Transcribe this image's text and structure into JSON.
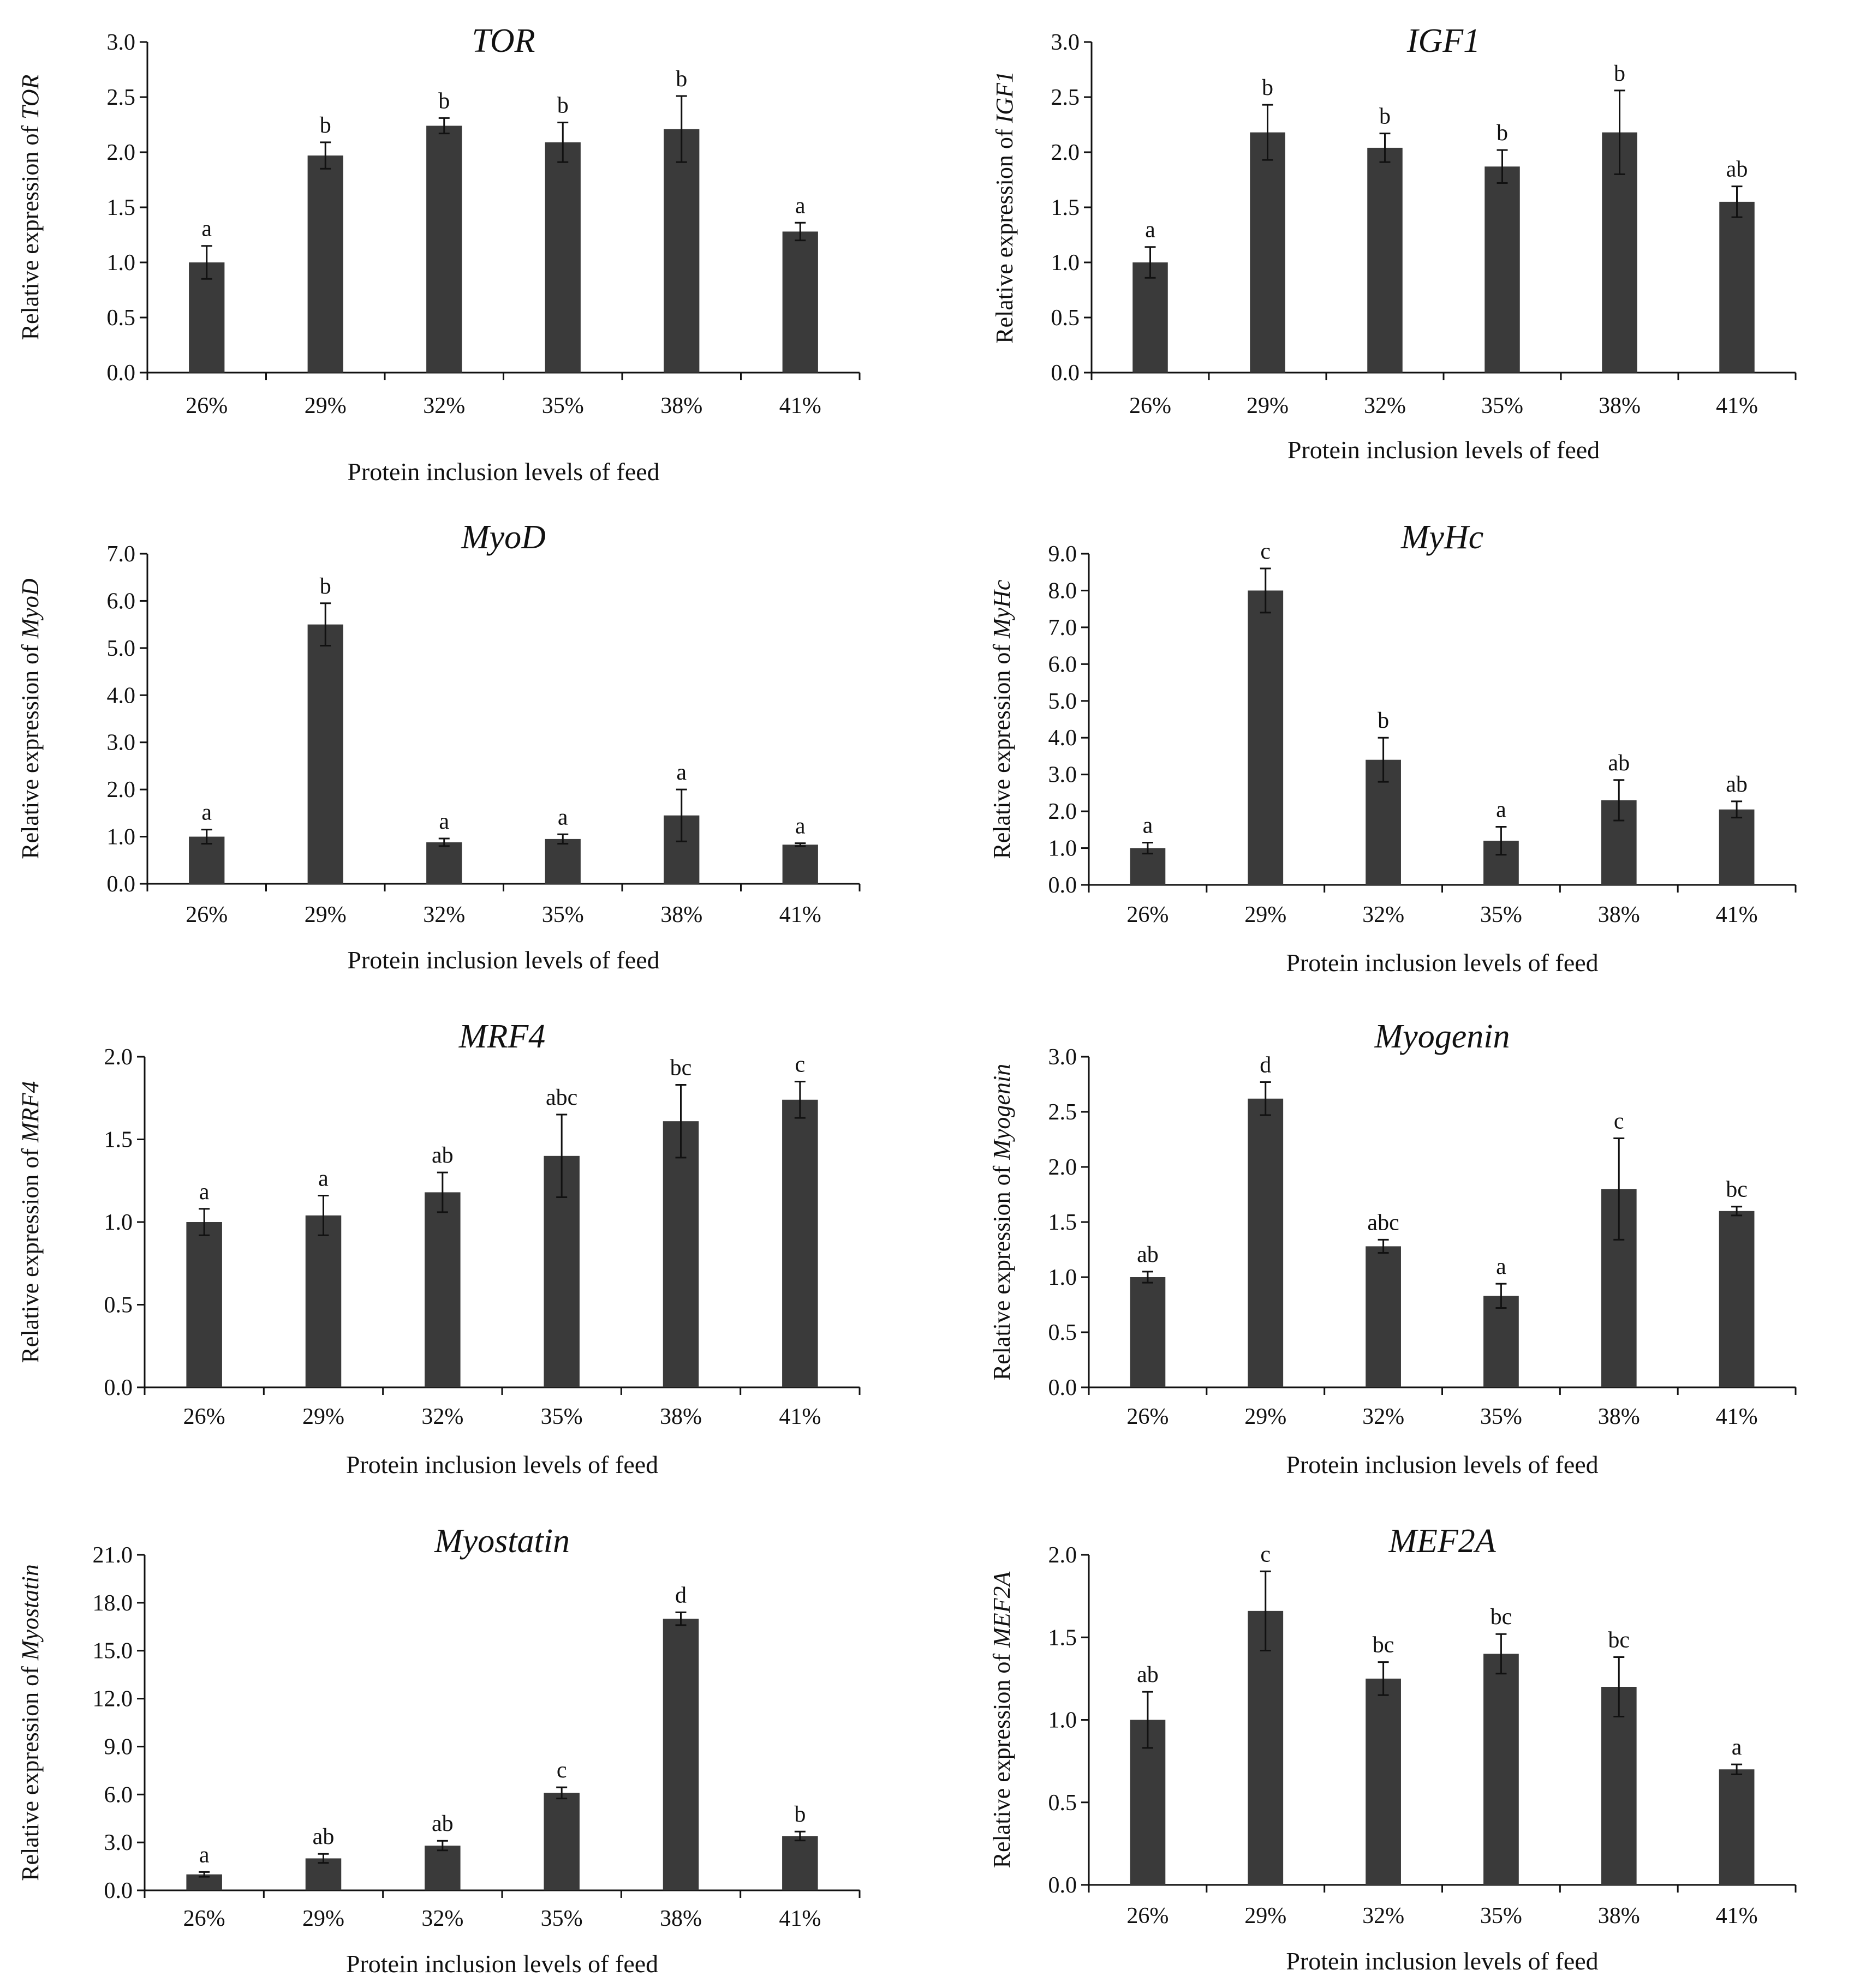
{
  "colors": {
    "bar": "#3a3a3a",
    "axis": "#111111",
    "error": "#111111"
  },
  "chart_data": [
    {
      "type": "bar",
      "title": "TOR",
      "ylabel_prefix": "Relative expression of ",
      "ylabel_gene": "TOR",
      "xlabel": "Protein inclusion levels of feed",
      "categories": [
        "26%",
        "29%",
        "32%",
        "35%",
        "38%",
        "41%"
      ],
      "values": [
        1.0,
        1.97,
        2.24,
        2.09,
        2.21,
        1.28
      ],
      "errors": [
        0.15,
        0.12,
        0.07,
        0.18,
        0.3,
        0.08
      ],
      "significance": [
        "a",
        "b",
        "b",
        "b",
        "b",
        "a"
      ],
      "ylim": [
        0,
        3.0
      ],
      "yticks": [
        "0.0",
        "0.5",
        "1.0",
        "1.5",
        "2.0",
        "2.5",
        "3.0"
      ]
    },
    {
      "type": "bar",
      "title": "IGF1",
      "ylabel_prefix": "Relative expression of ",
      "ylabel_gene": "IGF1",
      "xlabel": "Protein inclusion levels of feed",
      "categories": [
        "26%",
        "29%",
        "32%",
        "35%",
        "38%",
        "41%"
      ],
      "values": [
        1.0,
        2.18,
        2.04,
        1.87,
        2.18,
        1.55
      ],
      "errors": [
        0.14,
        0.25,
        0.13,
        0.15,
        0.38,
        0.14
      ],
      "significance": [
        "a",
        "b",
        "b",
        "b",
        "b",
        "ab"
      ],
      "ylim": [
        0,
        3.0
      ],
      "yticks": [
        "0.0",
        "0.5",
        "1.0",
        "1.5",
        "2.0",
        "2.5",
        "3.0"
      ]
    },
    {
      "type": "bar",
      "title": "MyoD",
      "ylabel_prefix": "Relative expression of ",
      "ylabel_gene": "MyoD",
      "xlabel": "Protein inclusion levels of feed",
      "categories": [
        "26%",
        "29%",
        "32%",
        "35%",
        "38%",
        "41%"
      ],
      "values": [
        1.0,
        5.5,
        0.88,
        0.95,
        1.45,
        0.83
      ],
      "errors": [
        0.15,
        0.45,
        0.08,
        0.1,
        0.55,
        0.03
      ],
      "significance": [
        "a",
        "b",
        "a",
        "a",
        "a",
        "a"
      ],
      "ylim": [
        0,
        7.0
      ],
      "yticks": [
        "0.0",
        "1.0",
        "2.0",
        "3.0",
        "4.0",
        "5.0",
        "6.0",
        "7.0"
      ]
    },
    {
      "type": "bar",
      "title": "MyHc",
      "ylabel_prefix": "Relative expression of ",
      "ylabel_gene": "MyHc",
      "xlabel": "Protein inclusion levels of feed",
      "categories": [
        "26%",
        "29%",
        "32%",
        "35%",
        "38%",
        "41%"
      ],
      "values": [
        1.0,
        8.0,
        3.4,
        1.2,
        2.3,
        2.05
      ],
      "errors": [
        0.15,
        0.6,
        0.6,
        0.38,
        0.55,
        0.22
      ],
      "significance": [
        "a",
        "c",
        "b",
        "a",
        "ab",
        "ab"
      ],
      "ylim": [
        0,
        9.0
      ],
      "yticks": [
        "0.0",
        "1.0",
        "2.0",
        "3.0",
        "4.0",
        "5.0",
        "6.0",
        "7.0",
        "8.0",
        "9.0"
      ]
    },
    {
      "type": "bar",
      "title": "MRF4",
      "ylabel_prefix": "Relative expression of ",
      "ylabel_gene": "MRF4",
      "xlabel": "Protein inclusion levels of feed",
      "categories": [
        "26%",
        "29%",
        "32%",
        "35%",
        "38%",
        "41%"
      ],
      "values": [
        1.0,
        1.04,
        1.18,
        1.4,
        1.61,
        1.74
      ],
      "errors": [
        0.08,
        0.12,
        0.12,
        0.25,
        0.22,
        0.11
      ],
      "significance": [
        "a",
        "a",
        "ab",
        "abc",
        "bc",
        "c"
      ],
      "ylim": [
        0,
        2.0
      ],
      "yticks": [
        "0.0",
        "0.5",
        "1.0",
        "1.5",
        "2.0"
      ]
    },
    {
      "type": "bar",
      "title": "Myogenin",
      "ylabel_prefix": "Relative expression of ",
      "ylabel_gene": "Myogenin",
      "xlabel": "Protein inclusion levels of feed",
      "categories": [
        "26%",
        "29%",
        "32%",
        "35%",
        "38%",
        "41%"
      ],
      "values": [
        1.0,
        2.62,
        1.28,
        0.83,
        1.8,
        1.6
      ],
      "errors": [
        0.05,
        0.15,
        0.06,
        0.11,
        0.46,
        0.04
      ],
      "significance": [
        "ab",
        "d",
        "abc",
        "a",
        "c",
        "bc"
      ],
      "ylim": [
        0,
        3.0
      ],
      "yticks": [
        "0.0",
        "0.5",
        "1.0",
        "1.5",
        "2.0",
        "2.5",
        "3.0"
      ]
    },
    {
      "type": "bar",
      "title": "Myostatin",
      "ylabel_prefix": "Relative expression of ",
      "ylabel_gene": "Myostatin",
      "xlabel": "Protein inclusion levels of feed",
      "categories": [
        "26%",
        "29%",
        "32%",
        "35%",
        "38%",
        "41%"
      ],
      "values": [
        1.0,
        2.0,
        2.8,
        6.1,
        17.0,
        3.4
      ],
      "errors": [
        0.15,
        0.28,
        0.3,
        0.35,
        0.4,
        0.28
      ],
      "significance": [
        "a",
        "ab",
        "ab",
        "c",
        "d",
        "b"
      ],
      "ylim": [
        0,
        21.0
      ],
      "yticks": [
        "0.0",
        "3.0",
        "6.0",
        "9.0",
        "12.0",
        "15.0",
        "18.0",
        "21.0"
      ]
    },
    {
      "type": "bar",
      "title": "MEF2A",
      "ylabel_prefix": "Relative expression of ",
      "ylabel_gene": "MEF2A",
      "xlabel": "Protein inclusion levels of feed",
      "categories": [
        "26%",
        "29%",
        "32%",
        "35%",
        "38%",
        "41%"
      ],
      "values": [
        1.0,
        1.66,
        1.25,
        1.4,
        1.2,
        0.7
      ],
      "errors": [
        0.17,
        0.24,
        0.1,
        0.12,
        0.18,
        0.03
      ],
      "significance": [
        "ab",
        "c",
        "bc",
        "bc",
        "bc",
        "a"
      ],
      "ylim": [
        0,
        2.0
      ],
      "yticks": [
        "0.0",
        "0.5",
        "1.0",
        "1.5",
        "2.0"
      ]
    }
  ]
}
